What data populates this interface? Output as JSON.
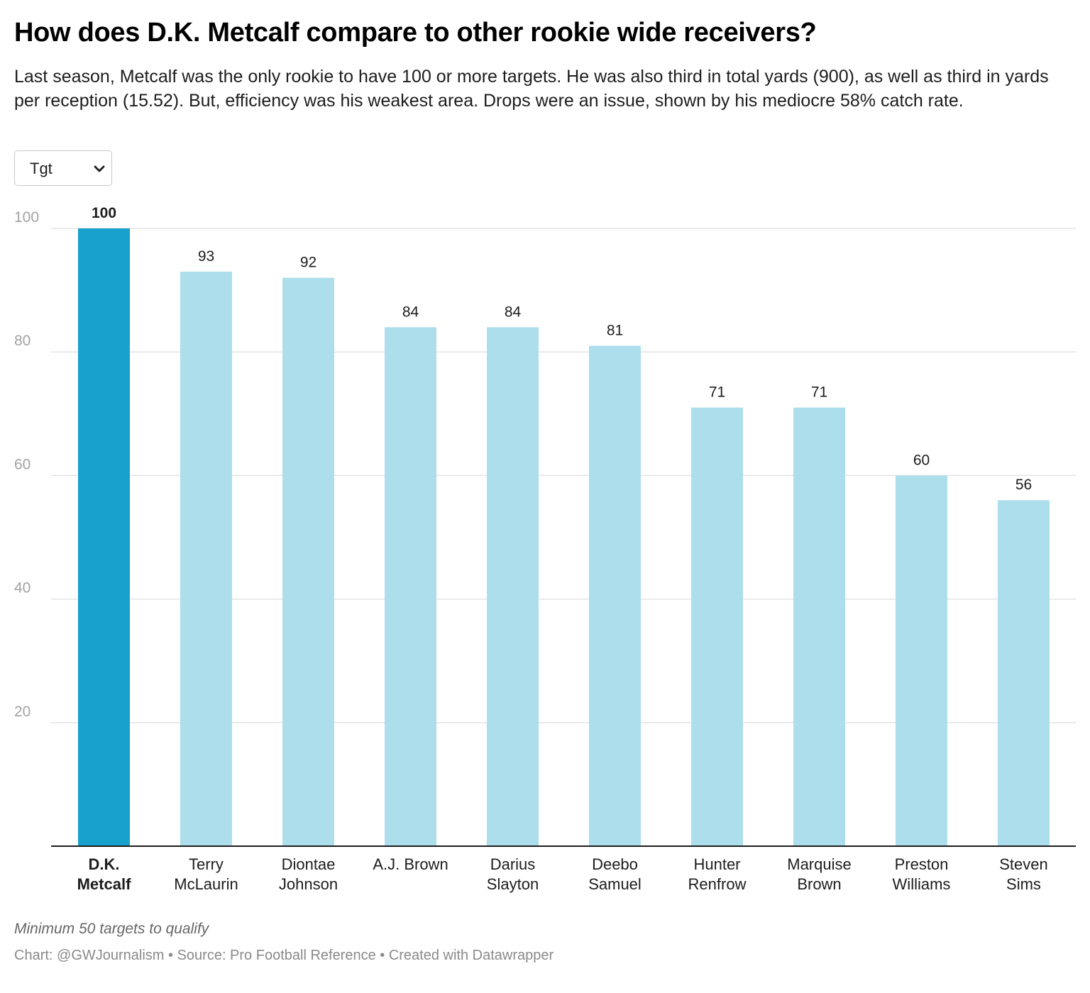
{
  "header": {
    "title": "How does D.K. Metcalf compare to other rookie wide receivers?",
    "description": "Last season, Metcalf was the only rookie to have 100 or more targets. He was also third in total yards (900), as well as third in yards per reception (15.52). But, efficiency was his weakest area. Drops were an issue, shown by his mediocre 58% catch rate."
  },
  "control": {
    "selected": "Tgt",
    "icon": "chevron-down-icon"
  },
  "chart_data": {
    "type": "bar",
    "categories": [
      [
        "D.K.",
        "Metcalf"
      ],
      [
        "Terry",
        "McLaurin"
      ],
      [
        "Diontae",
        "Johnson"
      ],
      [
        "A.J. Brown"
      ],
      [
        "Darius",
        "Slayton"
      ],
      [
        "Deebo",
        "Samuel"
      ],
      [
        "Hunter",
        "Renfrow"
      ],
      [
        "Marquise",
        "Brown"
      ],
      [
        "Preston",
        "Williams"
      ],
      [
        "Steven",
        "Sims"
      ]
    ],
    "values": [
      100,
      93,
      92,
      84,
      84,
      81,
      71,
      71,
      60,
      56
    ],
    "highlight_index": 0,
    "ylim": [
      0,
      100
    ],
    "yticks": [
      20,
      40,
      60,
      80,
      100
    ],
    "grid": true,
    "colors": {
      "highlight": "#18a1cd",
      "bar": "#addeeb",
      "grid": "#e3e3e3",
      "axis": "#1d1d1d",
      "tick_label": "#a3a3a3"
    }
  },
  "footer": {
    "note": "Minimum 50 targets to qualify",
    "credit": "Chart: @GWJournalism • Source: Pro Football Reference • Created with Datawrapper"
  }
}
